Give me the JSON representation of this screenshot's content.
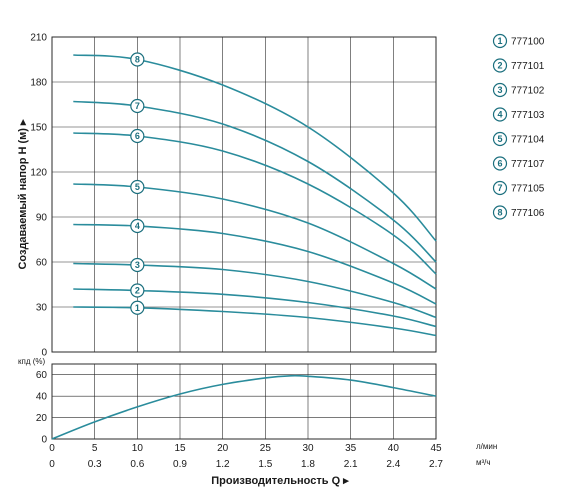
{
  "chart_data": [
    {
      "type": "line",
      "ylabel": "Создаваемый напор H (м) ▸",
      "ylim": [
        0,
        210
      ],
      "yticks": [
        0,
        30,
        60,
        90,
        120,
        150,
        180,
        210
      ],
      "xlim": [
        0,
        45
      ],
      "grid": true,
      "legend_placement": "right",
      "series": [
        {
          "name": "777100",
          "marker": "1",
          "x": [
            2.5,
            10,
            20,
            30,
            40,
            45
          ],
          "y": [
            30,
            29.5,
            27,
            23,
            16,
            11
          ]
        },
        {
          "name": "777101",
          "marker": "2",
          "x": [
            2.5,
            10,
            20,
            30,
            40,
            45
          ],
          "y": [
            42,
            41,
            38.5,
            33,
            24,
            17
          ]
        },
        {
          "name": "777102",
          "marker": "3",
          "x": [
            2.5,
            10,
            20,
            30,
            40,
            45
          ],
          "y": [
            59,
            58,
            55,
            47,
            33,
            23
          ]
        },
        {
          "name": "777103",
          "marker": "4",
          "x": [
            2.5,
            10,
            20,
            30,
            40,
            45
          ],
          "y": [
            85,
            84,
            79,
            67,
            46,
            32
          ]
        },
        {
          "name": "777104",
          "marker": "5",
          "x": [
            2.5,
            10,
            20,
            30,
            40,
            45
          ],
          "y": [
            112,
            110,
            102,
            86,
            59,
            42
          ]
        },
        {
          "name": "777107",
          "marker": "6",
          "x": [
            2.5,
            10,
            20,
            30,
            40,
            45
          ],
          "y": [
            146,
            144,
            134,
            112,
            78,
            52
          ]
        },
        {
          "name": "777105",
          "marker": "7",
          "x": [
            2.5,
            10,
            20,
            30,
            40,
            45
          ],
          "y": [
            167,
            164,
            152,
            127,
            88,
            60
          ]
        },
        {
          "name": "777106",
          "marker": "8",
          "x": [
            2.5,
            10,
            20,
            30,
            40,
            45
          ],
          "y": [
            198,
            195,
            178,
            150,
            106,
            74
          ]
        }
      ]
    },
    {
      "type": "line",
      "ylabel": "кпд (%)",
      "ylim": [
        0,
        70
      ],
      "yticks": [
        0,
        20,
        40,
        60
      ],
      "xlim": [
        0,
        45
      ],
      "grid": true,
      "series": [
        {
          "x": [
            0,
            5,
            10,
            15,
            20,
            25,
            28,
            30,
            35,
            40,
            45
          ],
          "y": [
            0,
            16,
            30,
            42,
            51,
            57,
            59,
            58.5,
            55,
            48,
            40
          ]
        }
      ]
    }
  ],
  "x_axis": {
    "flow_lmin_ticks": [
      "0",
      "5",
      "10",
      "15",
      "20",
      "25",
      "30",
      "35",
      "40",
      "45"
    ],
    "flow_m3h_ticks": [
      "0",
      "0.3",
      "0.6",
      "0.9",
      "1.2",
      "1.5",
      "1.8",
      "2.1",
      "2.4",
      "2.7"
    ],
    "unit_lmin": "л/мин",
    "unit_m3h": "м³/ч",
    "title": "Производительность Q ▸"
  },
  "legend": [
    {
      "marker": "1",
      "label": "777100"
    },
    {
      "marker": "2",
      "label": "777101"
    },
    {
      "marker": "3",
      "label": "777102"
    },
    {
      "marker": "4",
      "label": "777103"
    },
    {
      "marker": "5",
      "label": "777104"
    },
    {
      "marker": "6",
      "label": "777107"
    },
    {
      "marker": "7",
      "label": "777105"
    },
    {
      "marker": "8",
      "label": "777106"
    }
  ],
  "colors": {
    "curve": "#2a8c9c",
    "marker": "#1b6f7e",
    "grid": "#2b2b2b",
    "frame": "#2b2b2b"
  }
}
